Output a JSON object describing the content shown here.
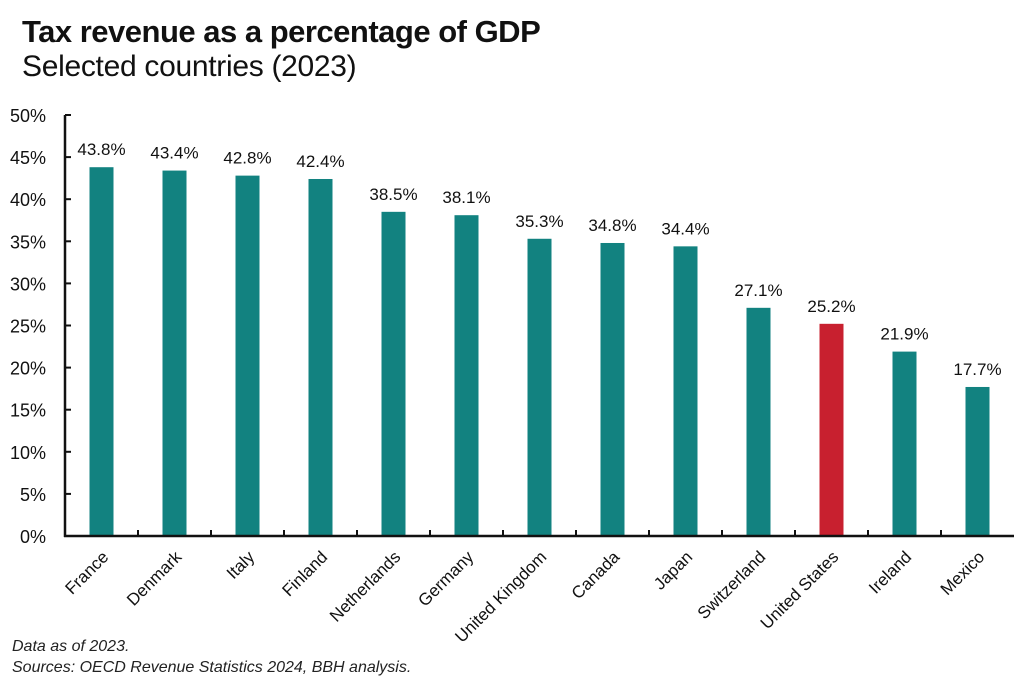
{
  "chart_data": {
    "type": "bar",
    "title": "Tax revenue as a percentage of GDP",
    "subtitle": "Selected countries (2023)",
    "xlabel": "",
    "ylabel": "",
    "ylim": [
      0,
      50
    ],
    "yticks": [
      "0%",
      "5%",
      "10%",
      "15%",
      "20%",
      "25%",
      "30%",
      "35%",
      "40%",
      "45%",
      "50%"
    ],
    "categories": [
      "France",
      "Denmark",
      "Italy",
      "Finland",
      "Netherlands",
      "Germany",
      "United Kingdom",
      "Canada",
      "Japan",
      "Switzerland",
      "United States",
      "Ireland",
      "Mexico"
    ],
    "values": [
      43.8,
      43.4,
      42.8,
      42.4,
      38.5,
      38.1,
      35.3,
      34.8,
      34.4,
      27.1,
      25.2,
      21.9,
      17.7
    ],
    "labels": [
      "43.8%",
      "43.4%",
      "42.8%",
      "42.4%",
      "38.5%",
      "38.1%",
      "35.3%",
      "34.8%",
      "34.4%",
      "27.1%",
      "25.2%",
      "21.9%",
      "17.7%"
    ],
    "highlight": "United States",
    "colors": {
      "default": "#128280",
      "highlight": "#C8202F"
    },
    "grid": false,
    "legend": "none"
  },
  "footnotes": {
    "note": "Data as of 2023.",
    "sources": "Sources: OECD Revenue Statistics 2024, BBH analysis."
  }
}
